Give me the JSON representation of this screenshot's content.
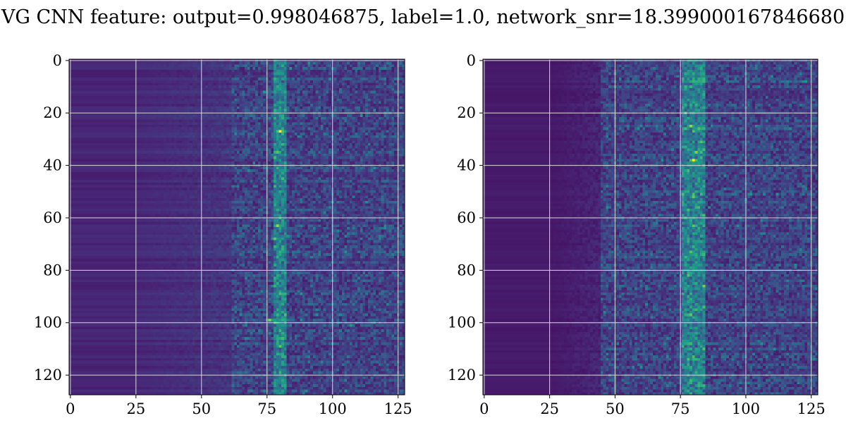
{
  "title": "VG CNN feature: output=0.998046875, label=1.0, network_snr=18.399000167846680",
  "chart_data": [
    {
      "type": "heatmap",
      "title": "",
      "xlabel": "",
      "ylabel": "",
      "xlim": [
        0,
        127
      ],
      "ylim": [
        127,
        0
      ],
      "x_ticks": [
        "0",
        "25",
        "50",
        "75",
        "100",
        "125"
      ],
      "y_ticks": [
        "0",
        "20",
        "40",
        "60",
        "80",
        "100",
        "120"
      ],
      "grid": true,
      "colormap": "viridis",
      "colors": {
        "low": "#440154",
        "mid": "#21918c",
        "high": "#fde725",
        "grid": "#d9d9d9"
      },
      "hot_columns": [
        78,
        82
      ],
      "bright_spots": [
        {
          "x": 80,
          "y": 27,
          "intensity": 1.0
        },
        {
          "x": 79,
          "y": 63,
          "intensity": 0.85
        },
        {
          "x": 78,
          "y": 68,
          "intensity": 0.75
        },
        {
          "x": 76,
          "y": 99,
          "intensity": 0.8
        },
        {
          "x": 80,
          "y": 109,
          "intensity": 0.75
        },
        {
          "x": 78,
          "y": 86,
          "intensity": 0.65
        },
        {
          "x": 81,
          "y": 43,
          "intensity": 0.6
        }
      ]
    },
    {
      "type": "heatmap",
      "title": "",
      "xlabel": "",
      "ylabel": "",
      "xlim": [
        0,
        127
      ],
      "ylim": [
        127,
        0
      ],
      "x_ticks": [
        "0",
        "25",
        "50",
        "75",
        "100",
        "125"
      ],
      "y_ticks": [
        "0",
        "20",
        "40",
        "60",
        "80",
        "100",
        "120"
      ],
      "grid": true,
      "colormap": "viridis",
      "colors": {
        "low": "#440154",
        "mid": "#21918c",
        "high": "#fde725",
        "grid": "#d9d9d9"
      },
      "hot_columns": [
        76,
        84
      ],
      "bright_spots": [
        {
          "x": 80,
          "y": 38,
          "intensity": 1.0
        },
        {
          "x": 79,
          "y": 25,
          "intensity": 0.85
        },
        {
          "x": 81,
          "y": 35,
          "intensity": 0.8
        },
        {
          "x": 80,
          "y": 52,
          "intensity": 0.75
        },
        {
          "x": 78,
          "y": 57,
          "intensity": 0.7
        },
        {
          "x": 80,
          "y": 71,
          "intensity": 0.65
        },
        {
          "x": 81,
          "y": 119,
          "intensity": 0.65
        }
      ]
    }
  ]
}
